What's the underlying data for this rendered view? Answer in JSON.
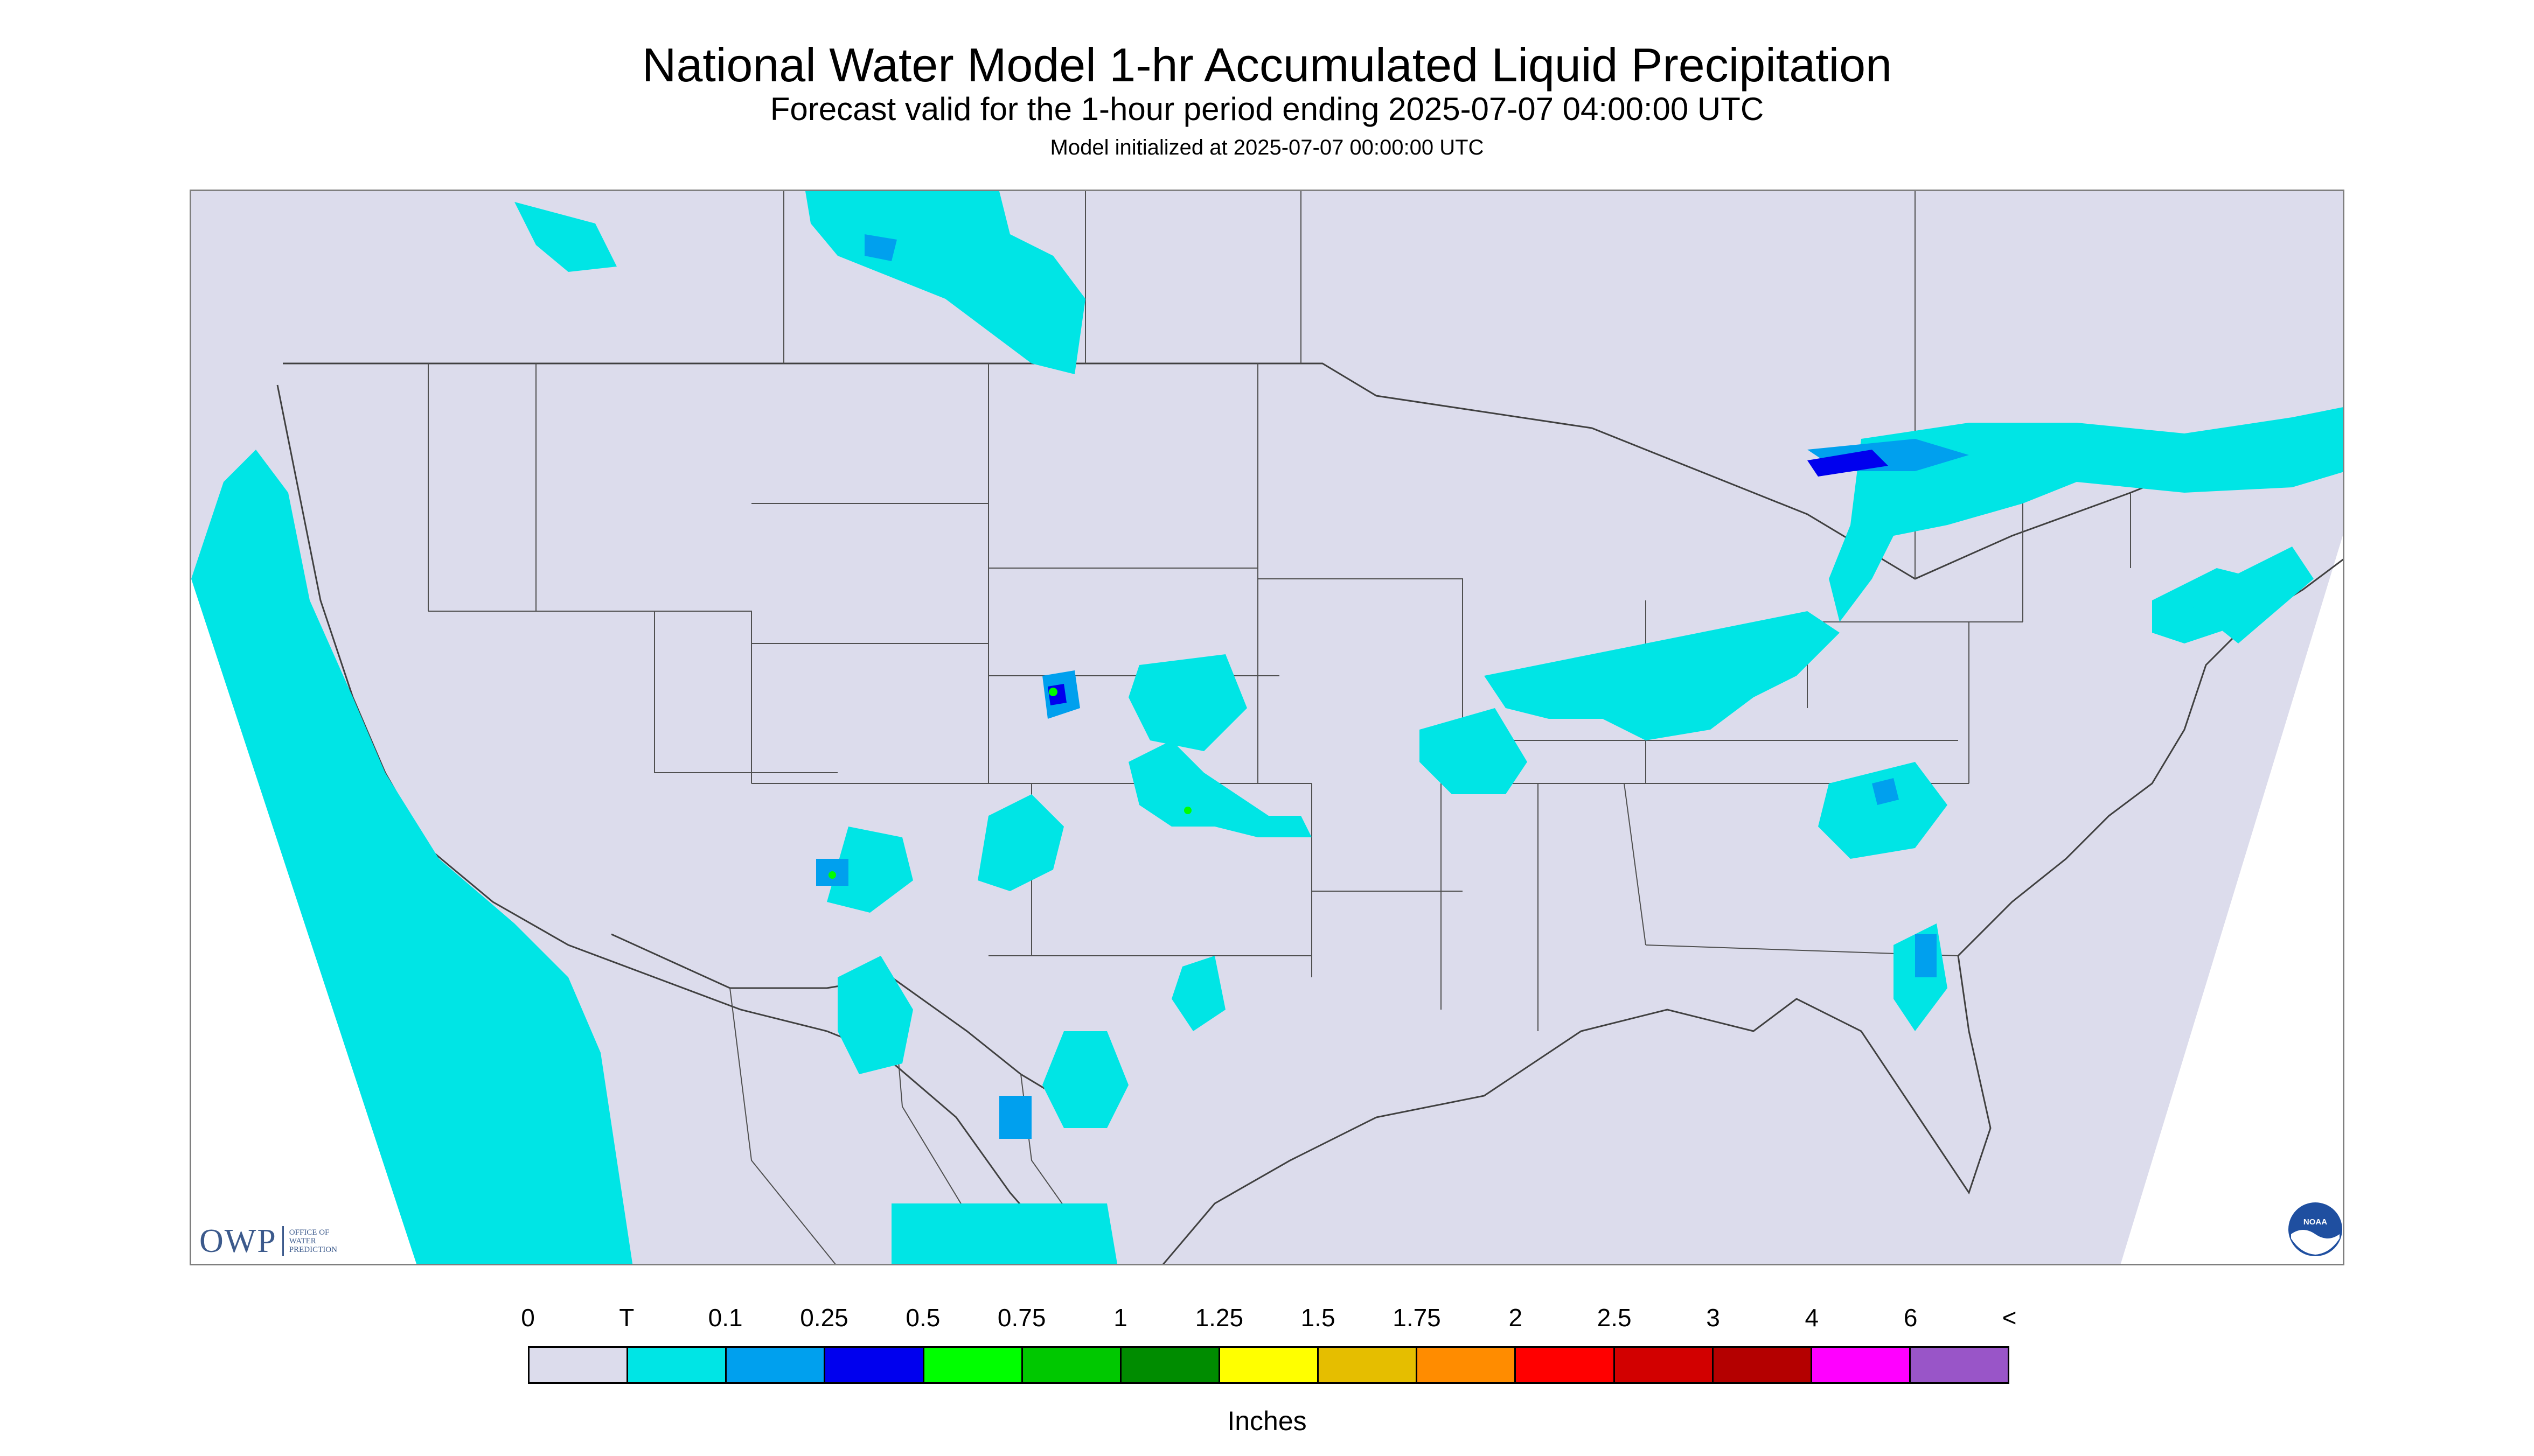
{
  "title": "National Water Model 1-hr Accumulated Liquid Precipitation",
  "subtitle": "Forecast valid for the 1-hour period ending 2025-07-07 04:00:00 UTC",
  "init_line": "Model initialized at 2025-07-07 00:00:00 UTC",
  "logos": {
    "owp_mark": "OWP",
    "owp_text": "OFFICE OF WATER PREDICTION",
    "noaa_text": "NOAA"
  },
  "legend": {
    "unit_label": "Inches",
    "labels": [
      "0",
      "T",
      "0.1",
      "0.25",
      "0.5",
      "0.75",
      "1",
      "1.25",
      "1.5",
      "1.75",
      "2",
      "2.5",
      "3",
      "4",
      "6",
      "<"
    ],
    "colors": [
      "#dcdcec",
      "#00e5e5",
      "#00a0ee",
      "#0000ee",
      "#00ff00",
      "#00c800",
      "#008c00",
      "#ffff00",
      "#e5be00",
      "#ff8c00",
      "#ff0000",
      "#d20000",
      "#b40000",
      "#ff00ff",
      "#9955c8"
    ]
  },
  "map_colors": {
    "domain_fill": "#dcdcec",
    "boundary": "#404040",
    "outside": "#ffffff"
  }
}
